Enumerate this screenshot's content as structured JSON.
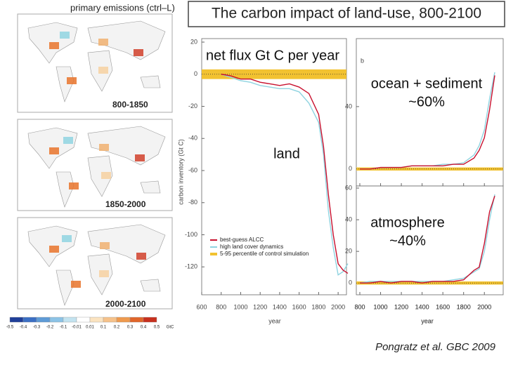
{
  "slide": {
    "title": "The carbon impact of land-use, 800-2100",
    "citation": "Pongratz et al. GBC 2009",
    "overlays": {
      "net_flux": "net flux Gt C per year",
      "land": "land",
      "ocean": [
        "ocean + sediment",
        "~60%"
      ],
      "atmosphere": [
        "atmosphere",
        "~40%"
      ]
    },
    "maps": {
      "title": "primary emissions (ctrl–L)",
      "periods": [
        "800-1850",
        "1850-2000",
        "2000-2100"
      ],
      "colorbar": [
        "-0.5",
        "-0.4",
        "-0.3",
        "-0.2",
        "-0.1",
        "-0.01",
        "0.01",
        "0.1",
        "0.2",
        "0.3",
        "0.4",
        "0.5",
        "GtC"
      ]
    }
  },
  "chart_data": [
    {
      "type": "line",
      "y_label": "carbon inventory (Gt C)",
      "x_label": "year",
      "x": [
        800,
        900,
        1000,
        1100,
        1200,
        1300,
        1400,
        1500,
        1600,
        1700,
        1800,
        1850,
        1900,
        1950,
        2000,
        2050,
        2100
      ],
      "xlim": [
        600,
        2100
      ],
      "xticks": [
        600,
        800,
        1000,
        1200,
        1400,
        1600,
        1800,
        2000
      ],
      "ylim": [
        -140,
        20
      ],
      "yticks": [
        20,
        0,
        -20,
        -40,
        -60,
        -80,
        -100,
        -120
      ],
      "band": {
        "name": "5-95 percentile of control simulation",
        "color": "#f2c230",
        "range": [
          -3,
          3
        ]
      },
      "series": [
        {
          "name": "best-guess ALCC",
          "color": "#c8102e",
          "values": [
            0,
            -1,
            -3,
            -3,
            -5,
            -6,
            -7,
            -6,
            -8,
            -12,
            -25,
            -45,
            -75,
            -100,
            -118,
            -122,
            -124
          ]
        },
        {
          "name": "high land cover dynamics",
          "color": "#8fd3e0",
          "values": [
            0,
            -2,
            -4,
            -5,
            -7,
            -8,
            -9,
            -9,
            -11,
            -18,
            -30,
            -50,
            -85,
            -108,
            -125,
            -123,
            -118
          ]
        }
      ]
    },
    {
      "type": "line",
      "panel_label": "b",
      "x_label": "year",
      "x": [
        800,
        900,
        1000,
        1100,
        1200,
        1300,
        1400,
        1500,
        1600,
        1700,
        1800,
        1900,
        1950,
        2000,
        2050,
        2100
      ],
      "xlim": [
        800,
        2100
      ],
      "xticks": [
        800,
        1000,
        1200,
        1400,
        1600,
        1800,
        2000
      ],
      "ylim": [
        -10,
        80
      ],
      "yticks": [
        0,
        40
      ],
      "band": {
        "color": "#f2c230",
        "range": [
          -1,
          1
        ]
      },
      "series": [
        {
          "color": "#c8102e",
          "values": [
            0,
            0,
            1,
            1,
            1,
            2,
            2,
            2,
            2,
            3,
            3,
            7,
            12,
            20,
            38,
            60
          ]
        },
        {
          "color": "#8fd3e0",
          "values": [
            0,
            0,
            1,
            1,
            1,
            2,
            2,
            2,
            3,
            3,
            4,
            9,
            15,
            25,
            45,
            62
          ]
        }
      ]
    },
    {
      "type": "line",
      "x_label": "year",
      "x": [
        800,
        900,
        1000,
        1100,
        1200,
        1300,
        1400,
        1500,
        1600,
        1700,
        1800,
        1900,
        1950,
        2000,
        2050,
        2100
      ],
      "xlim": [
        800,
        2100
      ],
      "xticks": [
        800,
        1000,
        1200,
        1400,
        1600,
        1800,
        2000
      ],
      "ylim": [
        -7,
        62
      ],
      "yticks": [
        0,
        20,
        40,
        60
      ],
      "band": {
        "color": "#f2c230",
        "range": [
          -1,
          1
        ]
      },
      "series": [
        {
          "color": "#c8102e",
          "values": [
            0,
            0,
            1,
            0,
            1,
            1,
            0,
            1,
            1,
            1,
            2,
            8,
            10,
            25,
            45,
            55
          ]
        },
        {
          "color": "#8fd3e0",
          "values": [
            0,
            1,
            1,
            1,
            1,
            1,
            1,
            1,
            1,
            2,
            3,
            7,
            9,
            20,
            40,
            56
          ]
        }
      ]
    }
  ]
}
